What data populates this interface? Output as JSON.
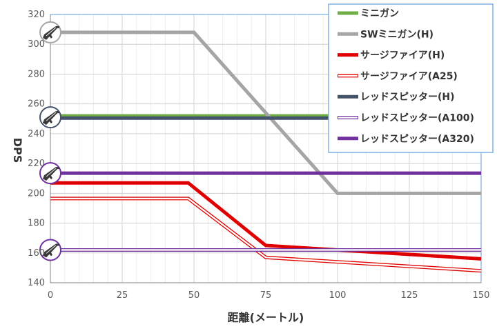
{
  "chart_data": {
    "type": "line",
    "xlabel": "距離(メートル)",
    "ylabel": "DPS",
    "xlim": [
      0,
      150
    ],
    "ylim": [
      140,
      320
    ],
    "x_ticks": [
      "0",
      "25",
      "50",
      "75",
      "100",
      "125",
      "150"
    ],
    "y_ticks": [
      "140",
      "160",
      "180",
      "200",
      "220",
      "240",
      "260",
      "280",
      "300",
      "320"
    ],
    "grid": true,
    "legend_position": "top-right",
    "series": [
      {
        "name": "ミニガン",
        "color": "#70ad47",
        "style": "solid",
        "width": 5,
        "x": [
          0,
          150
        ],
        "y": [
          252,
          252
        ]
      },
      {
        "name": "SWミニガン(H)",
        "color": "#a5a5a5",
        "style": "solid",
        "width": 5,
        "x": [
          0,
          50,
          100,
          150
        ],
        "y": [
          308,
          308,
          200,
          200
        ]
      },
      {
        "name": "サージファイア(H)",
        "color": "#e00000",
        "style": "solid",
        "width": 5,
        "x": [
          0,
          48,
          75,
          100,
          150
        ],
        "y": [
          207,
          207,
          165,
          162,
          156
        ]
      },
      {
        "name": "サージファイア(A25)",
        "color": "#e00000",
        "style": "double",
        "width": 5,
        "x": [
          0,
          48,
          75,
          100,
          150
        ],
        "y": [
          196.5,
          196.5,
          157,
          154,
          148
        ]
      },
      {
        "name": "レッドスピッター(H)",
        "color": "#44546a",
        "style": "solid",
        "width": 5,
        "x": [
          0,
          150
        ],
        "y": [
          250.5,
          250.5
        ]
      },
      {
        "name": "レッドスピッター(A100)",
        "color": "#7030a0",
        "style": "double",
        "width": 5,
        "x": [
          0,
          150
        ],
        "y": [
          162,
          162
        ]
      },
      {
        "name": "レッドスピッター(A320)",
        "color": "#7030a0",
        "style": "solid",
        "width": 5,
        "x": [
          0,
          150
        ],
        "y": [
          213.5,
          213.5
        ]
      }
    ],
    "markers": [
      {
        "y": 308,
        "color": "#a5a5a5",
        "icon": "weapon-icon"
      },
      {
        "y": 251,
        "color": "#44546a",
        "icon": "weapon-icon"
      },
      {
        "y": 213.5,
        "color": "#7030a0",
        "icon": "weapon-icon"
      },
      {
        "y": 162,
        "color": "#7030a0",
        "icon": "weapon-icon"
      }
    ]
  }
}
